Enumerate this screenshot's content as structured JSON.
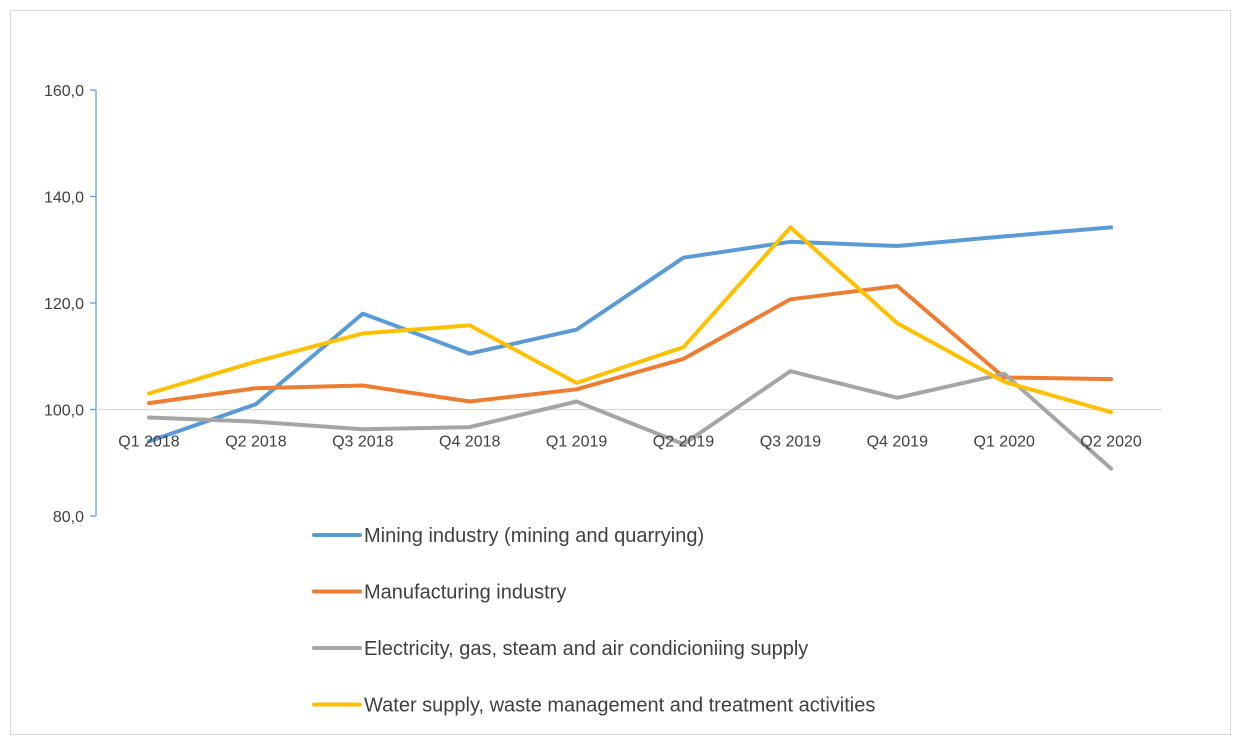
{
  "chart_data": {
    "type": "line",
    "title": "",
    "xlabel": "",
    "ylabel": "",
    "categories": [
      "Q1 2018",
      "Q2 2018",
      "Q3 2018",
      "Q4 2018",
      "Q1 2019",
      "Q2 2019",
      "Q3 2019",
      "Q4 2019",
      "Q1 2020",
      "Q2 2020"
    ],
    "ylim": [
      80,
      160
    ],
    "yticks": [
      80,
      100,
      120,
      140,
      160
    ],
    "ytick_labels": [
      "80,0",
      "100,0",
      "120,0",
      "140,0",
      "160,0"
    ],
    "x_axis_crosses_at": 100,
    "grid": false,
    "legend_position": "bottom",
    "series": [
      {
        "name": "Mining industry (mining and quarrying)",
        "color": "#5b9bd5",
        "values": [
          94.0,
          101.0,
          118.0,
          110.5,
          115.0,
          128.5,
          131.5,
          130.7,
          132.5,
          134.2
        ]
      },
      {
        "name": "Manufacturing industry",
        "color": "#ed7d31",
        "values": [
          101.2,
          104.0,
          104.5,
          101.5,
          103.8,
          109.5,
          120.7,
          123.2,
          106.0,
          105.7
        ]
      },
      {
        "name": "Electricity, gas, steam and air condicioniing supply",
        "color": "#a5a5a5",
        "values": [
          98.5,
          97.7,
          96.3,
          96.7,
          101.5,
          93.5,
          107.2,
          102.2,
          106.7,
          88.9
        ]
      },
      {
        "name": "Water supply, waste management and treatment activities",
        "color": "#ffc000",
        "values": [
          103.0,
          109.0,
          114.3,
          115.8,
          105.0,
          111.7,
          134.2,
          116.2,
          105.2,
          99.5
        ]
      }
    ]
  }
}
